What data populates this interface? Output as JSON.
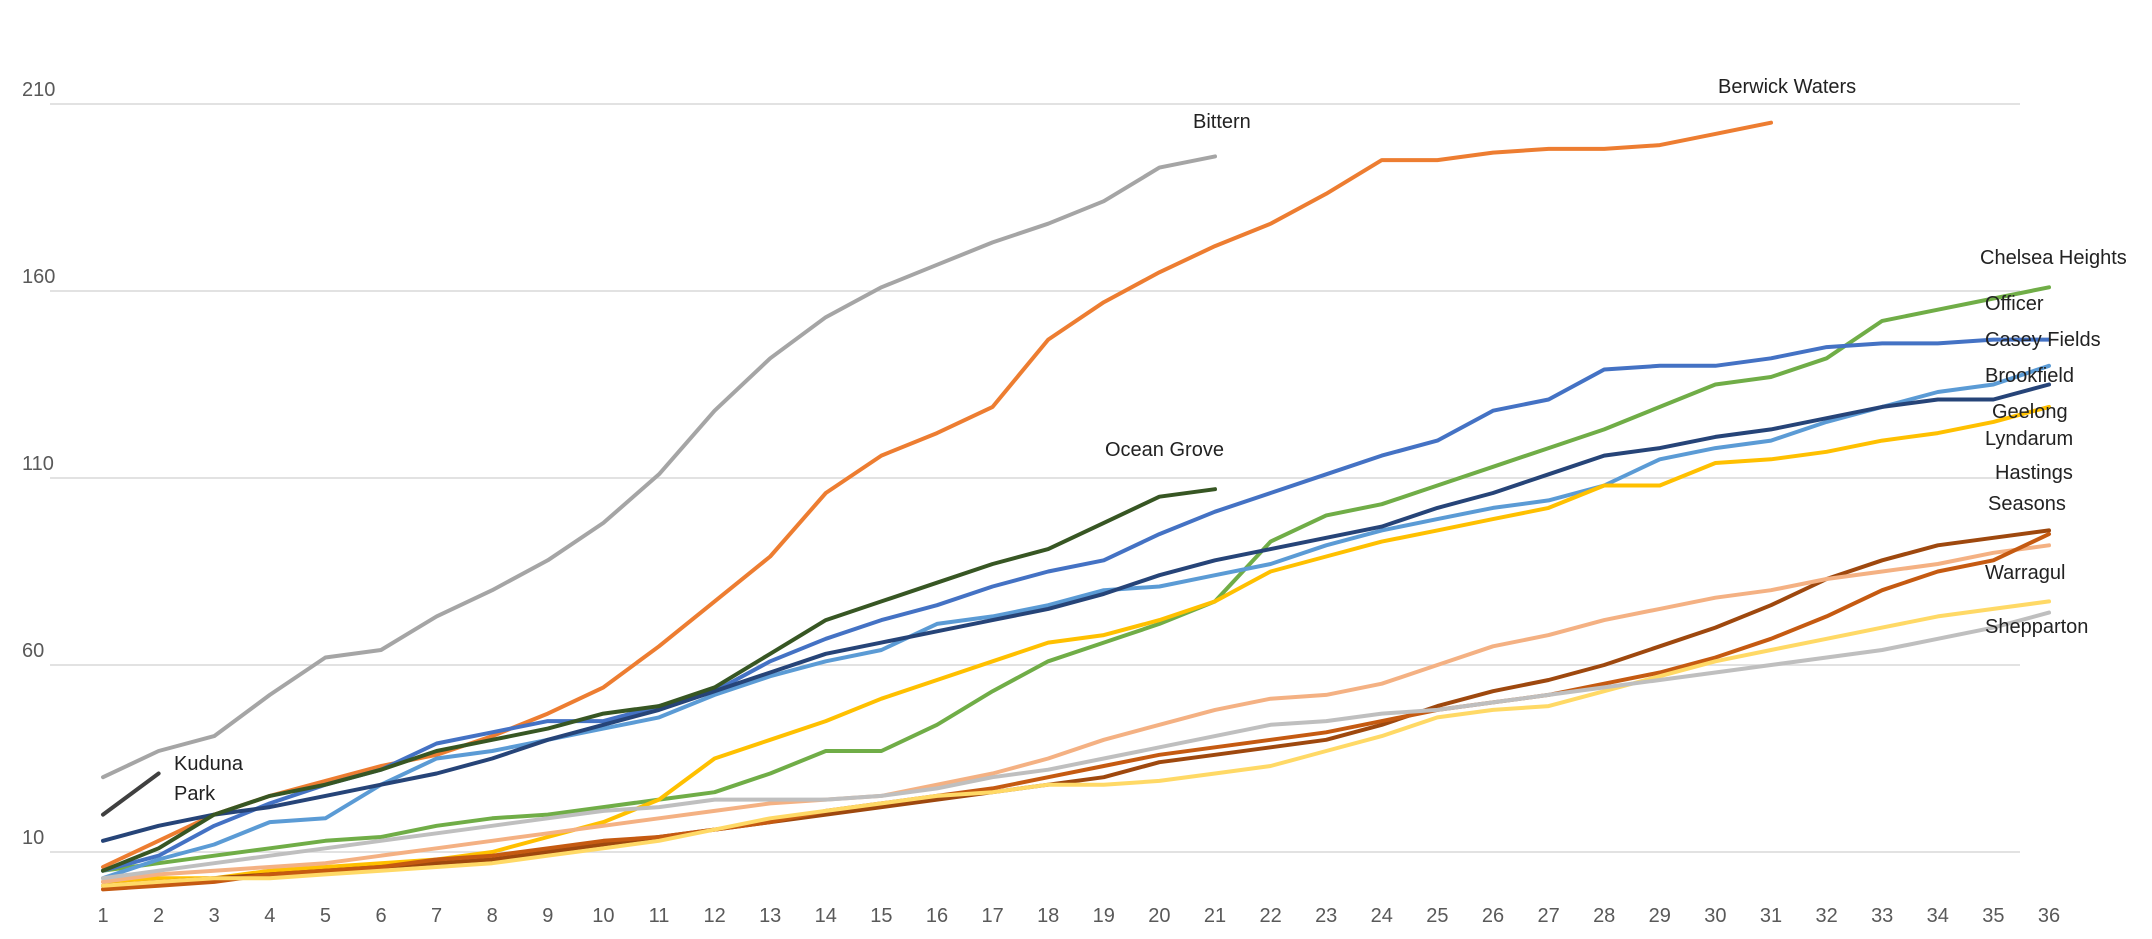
{
  "chart_data": {
    "type": "line",
    "title": "",
    "xlabel": "",
    "ylabel": "",
    "x": [
      1,
      2,
      3,
      4,
      5,
      6,
      7,
      8,
      9,
      10,
      11,
      12,
      13,
      14,
      15,
      16,
      17,
      18,
      19,
      20,
      21,
      22,
      23,
      24,
      25,
      26,
      27,
      28,
      29,
      30,
      31,
      32,
      33,
      34,
      35,
      36
    ],
    "x_ticks": [
      "1",
      "2",
      "3",
      "4",
      "5",
      "6",
      "7",
      "8",
      "9",
      "10",
      "11",
      "12",
      "13",
      "14",
      "15",
      "16",
      "17",
      "18",
      "19",
      "20",
      "21",
      "22",
      "23",
      "24",
      "25",
      "26",
      "27",
      "28",
      "29",
      "30",
      "31",
      "32",
      "33",
      "34",
      "35",
      "36"
    ],
    "y_ticks": [
      "10",
      "60",
      "110",
      "160",
      "210"
    ],
    "ylim": [
      0,
      230
    ],
    "grid": true,
    "legend": "none (series labelled at line ends)",
    "series": [
      {
        "name": "Bittern",
        "color": "#A5A5A5",
        "label": "Bittern",
        "x": [
          1,
          2,
          3,
          4,
          5,
          6,
          7,
          8,
          9,
          10,
          11,
          12,
          13,
          14,
          15,
          16,
          17,
          18,
          19,
          20,
          21
        ],
        "values": [
          30,
          37,
          41,
          52,
          62,
          64,
          73,
          80,
          88,
          98,
          111,
          128,
          142,
          153,
          161,
          167,
          173,
          178,
          184,
          193,
          196
        ]
      },
      {
        "name": "Berwick Waters",
        "color": "#ED7D31",
        "label": "Berwick Waters",
        "x": [
          1,
          2,
          3,
          4,
          5,
          6,
          7,
          8,
          9,
          10,
          11,
          12,
          13,
          14,
          15,
          16,
          17,
          18,
          19,
          20,
          21,
          22,
          23,
          24,
          25,
          26,
          27,
          28,
          29,
          30,
          31
        ],
        "values": [
          6,
          13,
          20,
          25,
          29,
          33,
          36,
          41,
          47,
          54,
          65,
          77,
          89,
          106,
          116,
          122,
          129,
          147,
          157,
          165,
          172,
          178,
          186,
          195,
          195,
          197,
          198,
          198,
          199,
          202,
          205
        ]
      },
      {
        "name": "Chelsea Heights",
        "color": "#70AD47",
        "label": "Chelsea Heights",
        "x": [
          1,
          2,
          3,
          4,
          5,
          6,
          7,
          8,
          9,
          10,
          11,
          12,
          13,
          14,
          15,
          16,
          17,
          18,
          19,
          20,
          21,
          22,
          23,
          24,
          25,
          26,
          27,
          28,
          29,
          30,
          31,
          32,
          33,
          34,
          35,
          36
        ],
        "values": [
          5,
          7,
          9,
          11,
          13,
          14,
          17,
          19,
          20,
          22,
          24,
          26,
          31,
          37,
          37,
          44,
          53,
          61,
          66,
          71,
          77,
          93,
          100,
          103,
          108,
          113,
          118,
          123,
          129,
          135,
          137,
          142,
          152,
          155,
          158,
          161
        ]
      },
      {
        "name": "Officer",
        "color": "#4472C4",
        "label": "Officer",
        "x": [
          1,
          2,
          3,
          4,
          5,
          6,
          7,
          8,
          9,
          10,
          11,
          12,
          13,
          14,
          15,
          16,
          17,
          18,
          19,
          20,
          21,
          22,
          23,
          24,
          25,
          26,
          27,
          28,
          29,
          30,
          31,
          32,
          33,
          34,
          35,
          36
        ],
        "values": [
          5,
          9,
          17,
          23,
          28,
          32,
          39,
          42,
          45,
          45,
          49,
          53,
          61,
          67,
          72,
          76,
          81,
          85,
          88,
          95,
          101,
          106,
          111,
          116,
          120,
          128,
          131,
          139,
          140,
          140,
          142,
          145,
          146,
          146,
          147,
          147
        ]
      },
      {
        "name": "Casey Fields",
        "color": "#5B9BD5",
        "label": "Casey Fields",
        "x": [
          1,
          2,
          3,
          4,
          5,
          6,
          7,
          8,
          9,
          10,
          11,
          12,
          13,
          14,
          15,
          16,
          17,
          18,
          19,
          20,
          21,
          22,
          23,
          24,
          25,
          26,
          27,
          28,
          29,
          30,
          31,
          32,
          33,
          34,
          35,
          36
        ],
        "values": [
          3,
          8,
          12,
          18,
          19,
          28,
          35,
          37,
          40,
          43,
          46,
          52,
          57,
          61,
          64,
          71,
          73,
          76,
          80,
          81,
          84,
          87,
          92,
          96,
          99,
          102,
          104,
          108,
          115,
          118,
          120,
          125,
          129,
          133,
          135,
          140
        ]
      },
      {
        "name": "Brookfield",
        "color": "#FFC000",
        "label": "Brookfield",
        "x": [
          1,
          2,
          3,
          4,
          5,
          6,
          7,
          8,
          9,
          10,
          11,
          12,
          13,
          14,
          15,
          16,
          17,
          18,
          19,
          20,
          21,
          22,
          23,
          24,
          25,
          26,
          27,
          28,
          29,
          30,
          31,
          32,
          33,
          34,
          35,
          36
        ],
        "values": [
          2,
          3,
          3,
          5,
          6,
          7,
          8,
          10,
          14,
          18,
          24,
          35,
          40,
          45,
          51,
          56,
          61,
          66,
          68,
          72,
          77,
          85,
          89,
          93,
          96,
          99,
          102,
          108,
          108,
          114,
          115,
          117,
          120,
          122,
          125,
          129
        ]
      },
      {
        "name": "Geelong",
        "color": "#264478",
        "label": "Geelong",
        "x": [
          1,
          2,
          3,
          4,
          5,
          6,
          7,
          8,
          9,
          10,
          11,
          12,
          13,
          14,
          15,
          16,
          17,
          18,
          19,
          20,
          21,
          22,
          23,
          24,
          25,
          26,
          27,
          28,
          29,
          30,
          31,
          32,
          33,
          34,
          35,
          36
        ],
        "values": [
          13,
          17,
          20,
          22,
          25,
          28,
          31,
          35,
          40,
          44,
          48,
          53,
          58,
          63,
          66,
          69,
          72,
          75,
          79,
          84,
          88,
          91,
          94,
          97,
          102,
          106,
          111,
          116,
          118,
          121,
          123,
          126,
          129,
          131,
          131,
          135
        ]
      },
      {
        "name": "Lyndarum",
        "color": "#9E480E",
        "label": "Lyndarum",
        "x": [
          1,
          2,
          3,
          4,
          5,
          6,
          7,
          8,
          9,
          10,
          11,
          12,
          13,
          14,
          15,
          16,
          17,
          18,
          19,
          20,
          21,
          22,
          23,
          24,
          25,
          26,
          27,
          28,
          29,
          30,
          31,
          32,
          33,
          34,
          35,
          36
        ],
        "values": [
          1,
          2,
          3,
          4,
          5,
          6,
          7,
          8,
          10,
          12,
          14,
          16,
          18,
          20,
          22,
          24,
          26,
          28,
          30,
          34,
          36,
          38,
          40,
          44,
          49,
          53,
          56,
          60,
          65,
          70,
          76,
          83,
          88,
          92,
          94,
          96
        ]
      },
      {
        "name": "Hastings",
        "color": "#F4B183",
        "label": "Hastings",
        "x": [
          1,
          2,
          3,
          4,
          5,
          6,
          7,
          8,
          9,
          10,
          11,
          12,
          13,
          14,
          15,
          16,
          17,
          18,
          19,
          20,
          21,
          22,
          23,
          24,
          25,
          26,
          27,
          28,
          29,
          30,
          31,
          32,
          33,
          34,
          35,
          36
        ],
        "values": [
          2,
          4,
          5,
          6,
          7,
          9,
          11,
          13,
          15,
          17,
          19,
          21,
          23,
          24,
          25,
          28,
          31,
          35,
          40,
          44,
          48,
          51,
          52,
          55,
          60,
          65,
          68,
          72,
          75,
          78,
          80,
          83,
          85,
          87,
          90,
          92
        ]
      },
      {
        "name": "Seasons",
        "color": "#C55A11",
        "label": "Seasons",
        "x": [
          1,
          2,
          3,
          4,
          5,
          6,
          7,
          8,
          9,
          10,
          11,
          12,
          13,
          14,
          15,
          16,
          17,
          18,
          19,
          20,
          21,
          22,
          23,
          24,
          25,
          26,
          27,
          28,
          29,
          30,
          31,
          32,
          33,
          34,
          35,
          36
        ],
        "values": [
          0,
          1,
          2,
          4,
          5,
          6,
          8,
          9,
          11,
          13,
          14,
          16,
          18,
          21,
          23,
          25,
          27,
          30,
          33,
          36,
          38,
          40,
          42,
          45,
          48,
          50,
          52,
          55,
          58,
          62,
          67,
          73,
          80,
          85,
          88,
          95
        ]
      },
      {
        "name": "Warragul",
        "color": "#FFD966",
        "label": "Warragul",
        "x": [
          1,
          2,
          3,
          4,
          5,
          6,
          7,
          8,
          9,
          10,
          11,
          12,
          13,
          14,
          15,
          16,
          17,
          18,
          19,
          20,
          21,
          22,
          23,
          24,
          25,
          26,
          27,
          28,
          29,
          30,
          31,
          32,
          33,
          34,
          35,
          36
        ],
        "values": [
          1,
          2,
          3,
          3,
          4,
          5,
          6,
          7,
          9,
          11,
          13,
          16,
          19,
          21,
          23,
          25,
          26,
          28,
          28,
          29,
          31,
          33,
          37,
          41,
          46,
          48,
          49,
          53,
          57,
          61,
          64,
          67,
          70,
          73,
          75,
          77
        ]
      },
      {
        "name": "Shepparton",
        "color": "#BFBFBF",
        "label": "Shepparton",
        "x": [
          1,
          2,
          3,
          4,
          5,
          6,
          7,
          8,
          9,
          10,
          11,
          12,
          13,
          14,
          15,
          16,
          17,
          18,
          19,
          20,
          21,
          22,
          23,
          24,
          25,
          26,
          27,
          28,
          29,
          30,
          31,
          32,
          33,
          34,
          35,
          36
        ],
        "values": [
          3,
          5,
          7,
          9,
          11,
          13,
          15,
          17,
          19,
          21,
          22,
          24,
          24,
          24,
          25,
          27,
          30,
          32,
          35,
          38,
          41,
          44,
          45,
          47,
          48,
          50,
          52,
          54,
          56,
          58,
          60,
          62,
          64,
          67,
          70,
          74
        ]
      },
      {
        "name": "Ocean Grove",
        "color": "#375623",
        "label": "Ocean Grove",
        "x": [
          1,
          2,
          3,
          4,
          5,
          6,
          7,
          8,
          9,
          10,
          11,
          12,
          13,
          14,
          15,
          16,
          17,
          18,
          19,
          20,
          21
        ],
        "values": [
          5,
          11,
          20,
          25,
          28,
          32,
          37,
          40,
          43,
          47,
          49,
          54,
          63,
          72,
          77,
          82,
          87,
          91,
          98,
          105,
          107
        ]
      },
      {
        "name": "Kuduna Park",
        "color": "#404040",
        "label": "Kuduna Park",
        "x": [
          1,
          2
        ],
        "values": [
          20,
          31
        ]
      }
    ]
  }
}
